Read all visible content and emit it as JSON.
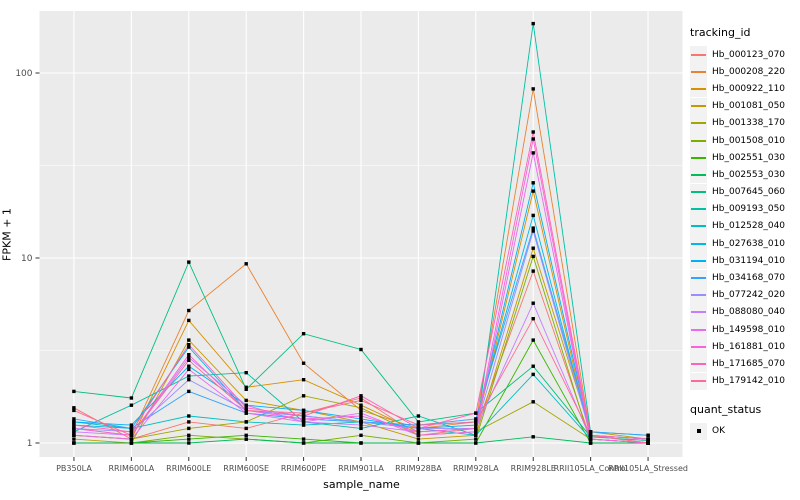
{
  "chart_data": {
    "type": "line",
    "title": "",
    "xlabel": "sample_name",
    "ylabel": "FPKM + 1",
    "y_scale": "log10",
    "y_ticks": [
      1,
      10,
      100
    ],
    "ylim": [
      0.95,
      210
    ],
    "grid": true,
    "panel_bg": "#EBEBEB",
    "grid_color": "#FFFFFF",
    "point_color": "#000000",
    "legend_position": "right",
    "legend_title": "tracking_id",
    "quant_legend_title": "quant_status",
    "quant_status_items": [
      "OK"
    ],
    "categories": [
      "PB350LA",
      "RRIM600LA",
      "RRIM600LE",
      "RRIM600SE",
      "RRIM600PE",
      "RRIM901LA",
      "RRIM928BA",
      "RRIM928LA",
      "RRIM928LE",
      "RRII105LA_Control",
      "RRII105LA_Stressed"
    ],
    "series": [
      {
        "name": "Hb_000123_070",
        "color": "#F8766D",
        "values": [
          1.55,
          1.05,
          1.3,
          1.2,
          1.45,
          1.75,
          1.1,
          1.2,
          8.5,
          1.05,
          1.0
        ]
      },
      {
        "name": "Hb_000208_220",
        "color": "#EA8331",
        "values": [
          1.2,
          1.1,
          5.2,
          9.3,
          2.7,
          1.5,
          1.2,
          1.3,
          82,
          1.1,
          1.0
        ]
      },
      {
        "name": "Hb_000922_110",
        "color": "#D89000",
        "values": [
          1.1,
          1.05,
          4.6,
          2.0,
          2.2,
          1.6,
          1.15,
          1.2,
          23,
          1.05,
          1.0
        ]
      },
      {
        "name": "Hb_001081_050",
        "color": "#C49A00",
        "values": [
          1.05,
          1.0,
          3.6,
          1.7,
          1.5,
          1.3,
          1.05,
          1.1,
          11.3,
          1.15,
          1.05
        ]
      },
      {
        "name": "Hb_001338_170",
        "color": "#A3A500",
        "values": [
          1.1,
          1.05,
          1.2,
          1.3,
          1.8,
          1.55,
          1.1,
          1.15,
          1.67,
          1.05,
          1.0
        ]
      },
      {
        "name": "Hb_001508_010",
        "color": "#7CAE00",
        "values": [
          1.0,
          1.0,
          1.1,
          1.05,
          1.0,
          1.1,
          1.0,
          1.05,
          10.2,
          1.0,
          1.0
        ]
      },
      {
        "name": "Hb_002551_030",
        "color": "#39B600",
        "values": [
          1.0,
          1.0,
          1.05,
          1.1,
          1.05,
          1.0,
          1.0,
          1.0,
          3.6,
          1.0,
          1.0
        ]
      },
      {
        "name": "Hb_002553_030",
        "color": "#00BC59",
        "values": [
          1.0,
          1.0,
          1.0,
          1.05,
          1.0,
          1.0,
          1.0,
          1.0,
          1.08,
          1.0,
          1.0
        ]
      },
      {
        "name": "Hb_007645_060",
        "color": "#00BF7D",
        "values": [
          1.9,
          1.75,
          9.5,
          1.95,
          3.9,
          3.2,
          1.3,
          1.45,
          2.6,
          1.08,
          1.03
        ]
      },
      {
        "name": "Hb_009193_050",
        "color": "#00C1A3",
        "values": [
          1.15,
          1.6,
          2.3,
          2.4,
          1.3,
          1.2,
          1.4,
          1.1,
          185,
          1.15,
          1.1
        ]
      },
      {
        "name": "Hb_012528_040",
        "color": "#00BFC4",
        "values": [
          1.3,
          1.2,
          1.4,
          1.3,
          1.25,
          1.3,
          1.2,
          1.1,
          2.35,
          1.05,
          1.0
        ]
      },
      {
        "name": "Hb_027638_010",
        "color": "#00B8E5",
        "values": [
          1.25,
          1.2,
          3.3,
          1.5,
          1.4,
          1.3,
          1.25,
          1.3,
          17,
          1.1,
          1.05
        ]
      },
      {
        "name": "Hb_031194_010",
        "color": "#00B0F6",
        "values": [
          1.3,
          1.25,
          2.6,
          1.6,
          1.5,
          1.35,
          1.2,
          1.25,
          25.5,
          1.1,
          1.05
        ]
      },
      {
        "name": "Hb_034168_070",
        "color": "#35A2FF",
        "values": [
          1.35,
          1.2,
          1.9,
          1.45,
          1.35,
          1.3,
          1.25,
          1.35,
          14.5,
          1.15,
          1.1
        ]
      },
      {
        "name": "Hb_077242_020",
        "color": "#9590FF",
        "values": [
          1.2,
          1.15,
          2.2,
          1.5,
          1.4,
          1.3,
          1.2,
          1.2,
          14.0,
          1.1,
          1.05
        ]
      },
      {
        "name": "Hb_088080_040",
        "color": "#C77CFF",
        "values": [
          1.15,
          1.1,
          2.9,
          1.6,
          1.3,
          1.25,
          1.15,
          1.2,
          5.7,
          1.05,
          1.0
        ]
      },
      {
        "name": "Hb_149598_010",
        "color": "#E76BF3",
        "values": [
          1.1,
          1.05,
          2.5,
          1.45,
          1.3,
          1.45,
          1.1,
          1.15,
          37,
          1.05,
          1.0
        ]
      },
      {
        "name": "Hb_161881_010",
        "color": "#FA62DB",
        "values": [
          1.2,
          1.1,
          3.0,
          1.5,
          1.35,
          1.4,
          1.15,
          1.2,
          44,
          1.05,
          1.0
        ]
      },
      {
        "name": "Hb_171685_070",
        "color": "#FF62BC",
        "values": [
          1.25,
          1.15,
          3.4,
          1.55,
          1.4,
          1.8,
          1.2,
          1.45,
          48,
          1.1,
          1.05
        ]
      },
      {
        "name": "Hb_179142_010",
        "color": "#FF6A98",
        "values": [
          1.5,
          1.1,
          2.8,
          1.5,
          1.45,
          1.7,
          1.25,
          1.3,
          4.7,
          1.1,
          1.0
        ]
      }
    ]
  }
}
